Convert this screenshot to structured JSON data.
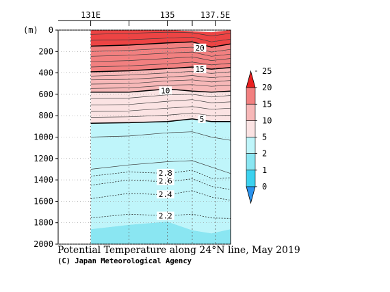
{
  "chart_data": {
    "type": "heatmap",
    "title": "Potential Temperature along 24°N line, May 2019",
    "credit": "(C) Japan Meteorological Agency",
    "y_unit_label": "(m)",
    "x_ticks": [
      {
        "lon": 131,
        "label": "131E"
      },
      {
        "lon": 133,
        "label": ""
      },
      {
        "lon": 135,
        "label": "135"
      },
      {
        "lon": 136.3,
        "label": ""
      },
      {
        "lon": 137.5,
        "label": "137.5E"
      }
    ],
    "xlim": [
      129.3,
      138.3
    ],
    "ylim": [
      2000,
      0
    ],
    "y_ticks": [
      0,
      200,
      400,
      600,
      800,
      1000,
      1200,
      1400,
      1600,
      1800,
      2000
    ],
    "y_reversed": true,
    "data_lon_range": [
      131,
      138.3
    ],
    "colorbar": {
      "levels": [
        "0",
        "1",
        "2",
        "5",
        "10",
        "15",
        "20",
        "25"
      ],
      "colors": [
        "#2a93ee",
        "#3cd2ef",
        "#8ae6f2",
        "#bff5fa",
        "#fbe3e3",
        "#f7b8b8",
        "#f28080",
        "#ed4444",
        "#ea1f1f"
      ],
      "extend": "both"
    },
    "contour_labels": [
      {
        "text": "20",
        "lon": 136.7,
        "depth": 165
      },
      {
        "text": "15",
        "lon": 136.7,
        "depth": 365
      },
      {
        "text": "10",
        "lon": 134.9,
        "depth": 565
      },
      {
        "text": "5",
        "lon": 136.8,
        "depth": 830
      },
      {
        "text": "2.8",
        "lon": 134.9,
        "depth": 1335
      },
      {
        "text": "2.6",
        "lon": 134.9,
        "depth": 1410
      },
      {
        "text": "2.4",
        "lon": 134.9,
        "depth": 1535
      },
      {
        "text": "2.2",
        "lon": 134.9,
        "depth": 1735
      }
    ],
    "regions": [
      {
        "band": "20-25",
        "top": [
          [
            131,
            0
          ],
          [
            135,
            0
          ],
          [
            136.3,
            10
          ],
          [
            137.3,
            20
          ],
          [
            138.3,
            0
          ]
        ],
        "bottom": [
          [
            131,
            150
          ],
          [
            133,
            140
          ],
          [
            135,
            120
          ],
          [
            136.3,
            110
          ],
          [
            137.3,
            160
          ],
          [
            138.3,
            130
          ]
        ]
      },
      {
        "band": "15-20",
        "top": [
          [
            131,
            150
          ],
          [
            133,
            140
          ],
          [
            135,
            120
          ],
          [
            136.3,
            110
          ],
          [
            137.3,
            160
          ],
          [
            138.3,
            130
          ]
        ],
        "bottom": [
          [
            131,
            390
          ],
          [
            133,
            380
          ],
          [
            135,
            360
          ],
          [
            136.3,
            345
          ],
          [
            137.3,
            365
          ],
          [
            138.3,
            350
          ]
        ]
      },
      {
        "band": "10-15",
        "top": [
          [
            131,
            390
          ],
          [
            133,
            380
          ],
          [
            135,
            360
          ],
          [
            136.3,
            345
          ],
          [
            137.3,
            365
          ],
          [
            138.3,
            350
          ]
        ],
        "bottom": [
          [
            131,
            580
          ],
          [
            133,
            580
          ],
          [
            135,
            550
          ],
          [
            136.3,
            570
          ],
          [
            137.3,
            580
          ],
          [
            138.3,
            570
          ]
        ]
      },
      {
        "band": "5-10",
        "top": [
          [
            131,
            580
          ],
          [
            133,
            580
          ],
          [
            135,
            550
          ],
          [
            136.3,
            570
          ],
          [
            137.3,
            580
          ],
          [
            138.3,
            570
          ]
        ],
        "bottom": [
          [
            131,
            870
          ],
          [
            133,
            865
          ],
          [
            135,
            855
          ],
          [
            136.3,
            830
          ],
          [
            137.3,
            855
          ],
          [
            138.3,
            855
          ]
        ]
      },
      {
        "band": "2-5",
        "top": [
          [
            131,
            870
          ],
          [
            133,
            865
          ],
          [
            135,
            855
          ],
          [
            136.3,
            830
          ],
          [
            137.3,
            855
          ],
          [
            138.3,
            855
          ]
        ],
        "bottom": [
          [
            131,
            1860
          ],
          [
            133,
            1820
          ],
          [
            135,
            1790
          ],
          [
            136.3,
            1870
          ],
          [
            137.3,
            1900
          ],
          [
            138.3,
            1860
          ]
        ]
      },
      {
        "band": "1-2",
        "top": [
          [
            131,
            1860
          ],
          [
            133,
            1820
          ],
          [
            135,
            1790
          ],
          [
            136.3,
            1870
          ],
          [
            137.3,
            1900
          ],
          [
            138.3,
            1860
          ]
        ],
        "bottom": [
          [
            131,
            2000
          ],
          [
            138.3,
            2000
          ]
        ]
      }
    ],
    "major_contours": [
      {
        "label": "20",
        "points": [
          [
            131,
            150
          ],
          [
            133,
            140
          ],
          [
            135,
            120
          ],
          [
            136.3,
            110
          ],
          [
            137.3,
            160
          ],
          [
            138.3,
            130
          ]
        ]
      },
      {
        "label": "15",
        "points": [
          [
            131,
            390
          ],
          [
            133,
            380
          ],
          [
            135,
            360
          ],
          [
            136.3,
            345
          ],
          [
            137.3,
            365
          ],
          [
            138.3,
            350
          ]
        ]
      },
      {
        "label": "10",
        "points": [
          [
            131,
            580
          ],
          [
            133,
            580
          ],
          [
            135,
            550
          ],
          [
            136.3,
            570
          ],
          [
            137.3,
            580
          ],
          [
            138.3,
            570
          ]
        ]
      },
      {
        "label": "5",
        "points": [
          [
            131,
            870
          ],
          [
            133,
            865
          ],
          [
            135,
            855
          ],
          [
            136.3,
            830
          ],
          [
            137.3,
            855
          ],
          [
            138.3,
            855
          ]
        ]
      }
    ],
    "minor_contours": [
      [
        [
          131,
          40
        ],
        [
          133,
          30
        ],
        [
          135,
          20
        ],
        [
          136.3,
          25
        ],
        [
          137.3,
          55
        ],
        [
          138.3,
          30
        ]
      ],
      [
        [
          131,
          95
        ],
        [
          133,
          90
        ],
        [
          135,
          75
        ],
        [
          136.3,
          65
        ],
        [
          137.3,
          110
        ],
        [
          138.3,
          85
        ]
      ],
      [
        [
          131,
          200
        ],
        [
          133,
          190
        ],
        [
          135,
          170
        ],
        [
          136.3,
          160
        ],
        [
          137.3,
          205
        ],
        [
          138.3,
          180
        ]
      ],
      [
        [
          131,
          245
        ],
        [
          133,
          235
        ],
        [
          135,
          215
        ],
        [
          136.3,
          205
        ],
        [
          137.3,
          245
        ],
        [
          138.3,
          225
        ]
      ],
      [
        [
          131,
          295
        ],
        [
          133,
          285
        ],
        [
          135,
          265
        ],
        [
          136.3,
          250
        ],
        [
          137.3,
          285
        ],
        [
          138.3,
          265
        ]
      ],
      [
        [
          131,
          345
        ],
        [
          133,
          335
        ],
        [
          135,
          315
        ],
        [
          136.3,
          300
        ],
        [
          137.3,
          325
        ],
        [
          138.3,
          310
        ]
      ],
      [
        [
          131,
          430
        ],
        [
          133,
          420
        ],
        [
          135,
          400
        ],
        [
          136.3,
          385
        ],
        [
          137.3,
          405
        ],
        [
          138.3,
          390
        ]
      ],
      [
        [
          131,
          465
        ],
        [
          133,
          460
        ],
        [
          135,
          440
        ],
        [
          136.3,
          425
        ],
        [
          137.3,
          445
        ],
        [
          138.3,
          430
        ]
      ],
      [
        [
          131,
          505
        ],
        [
          133,
          500
        ],
        [
          135,
          475
        ],
        [
          136.3,
          465
        ],
        [
          137.3,
          485
        ],
        [
          138.3,
          470
        ]
      ],
      [
        [
          131,
          545
        ],
        [
          133,
          540
        ],
        [
          135,
          515
        ],
        [
          136.3,
          510
        ],
        [
          137.3,
          525
        ],
        [
          138.3,
          515
        ]
      ],
      [
        [
          131,
          640
        ],
        [
          133,
          635
        ],
        [
          135,
          605
        ],
        [
          136.3,
          600
        ],
        [
          137.3,
          625
        ],
        [
          138.3,
          610
        ]
      ],
      [
        [
          131,
          700
        ],
        [
          133,
          695
        ],
        [
          135,
          665
        ],
        [
          136.3,
          650
        ],
        [
          137.3,
          680
        ],
        [
          138.3,
          670
        ]
      ],
      [
        [
          131,
          760
        ],
        [
          133,
          755
        ],
        [
          135,
          730
        ],
        [
          136.3,
          715
        ],
        [
          137.3,
          740
        ],
        [
          138.3,
          730
        ]
      ],
      [
        [
          131,
          815
        ],
        [
          133,
          810
        ],
        [
          135,
          795
        ],
        [
          136.3,
          775
        ],
        [
          137.3,
          800
        ],
        [
          138.3,
          795
        ]
      ],
      [
        [
          131,
          1000
        ],
        [
          133,
          990
        ],
        [
          135,
          960
        ],
        [
          136.3,
          950
        ],
        [
          137.3,
          1000
        ],
        [
          138.3,
          1030
        ]
      ],
      [
        [
          131,
          1300
        ],
        [
          133,
          1260
        ],
        [
          135,
          1230
        ],
        [
          136.3,
          1220
        ],
        [
          137.3,
          1280
        ],
        [
          138.3,
          1340
        ]
      ]
    ],
    "dotted_contours": [
      {
        "label": "2.8",
        "points": [
          [
            131,
            1365
          ],
          [
            133,
            1325
          ],
          [
            135,
            1340
          ],
          [
            136.3,
            1310
          ],
          [
            137.3,
            1385
          ],
          [
            138.3,
            1380
          ]
        ]
      },
      {
        "label": "2.6",
        "points": [
          [
            131,
            1450
          ],
          [
            133,
            1400
          ],
          [
            135,
            1420
          ],
          [
            136.3,
            1390
          ],
          [
            137.3,
            1460
          ],
          [
            138.3,
            1490
          ]
        ]
      },
      {
        "label": "2.4",
        "points": [
          [
            131,
            1575
          ],
          [
            133,
            1525
          ],
          [
            135,
            1540
          ],
          [
            136.3,
            1500
          ],
          [
            137.3,
            1560
          ],
          [
            138.3,
            1590
          ]
        ]
      },
      {
        "label": "2.2",
        "points": [
          [
            131,
            1755
          ],
          [
            133,
            1720
          ],
          [
            135,
            1735
          ],
          [
            136.3,
            1720
          ],
          [
            137.3,
            1755
          ],
          [
            138.3,
            1760
          ]
        ]
      }
    ]
  }
}
